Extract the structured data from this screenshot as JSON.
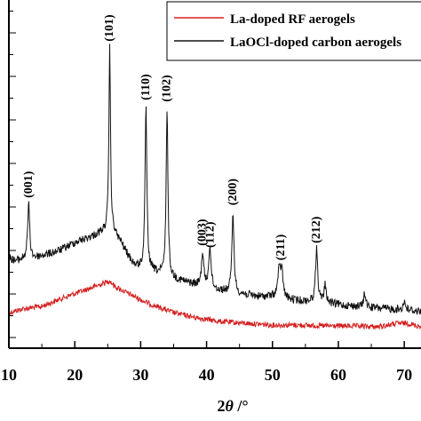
{
  "chart_data": {
    "type": "line",
    "title": "",
    "xlabel": "2θ /°",
    "xlabel_parts": {
      "two": "2",
      "theta": "θ",
      "unit": " /°"
    },
    "ylabel": "",
    "xlim": [
      10,
      72
    ],
    "x_ticks": [
      10,
      20,
      30,
      40,
      50,
      60,
      70
    ],
    "x_tick_labels": [
      "10",
      "20",
      "30",
      "40",
      "50",
      "60",
      "70"
    ],
    "y_tick_labels_shown": false,
    "legend_position": "top-right",
    "series": [
      {
        "name": "La-doped RF aerogels",
        "color": "#d42020",
        "points": [
          [
            10,
            352
          ],
          [
            12,
            348
          ],
          [
            15,
            345
          ],
          [
            18,
            336
          ],
          [
            21,
            328
          ],
          [
            24,
            320
          ],
          [
            25.3,
            316
          ],
          [
            26,
            322
          ],
          [
            28,
            330
          ],
          [
            31,
            341
          ],
          [
            35,
            352
          ],
          [
            38,
            357
          ],
          [
            42,
            362
          ],
          [
            46,
            364
          ],
          [
            50,
            366
          ],
          [
            54,
            366
          ],
          [
            58,
            367
          ],
          [
            62,
            367
          ],
          [
            66,
            368
          ],
          [
            69,
            364
          ],
          [
            70.5,
            364
          ],
          [
            72,
            367
          ]
        ],
        "noise": 6,
        "peaks": []
      },
      {
        "name": "LaOCl-doped carbon aerogels",
        "color": "#111111",
        "points": [
          [
            10,
            290
          ],
          [
            11,
            294
          ],
          [
            12,
            292
          ],
          [
            14,
            290
          ],
          [
            16,
            286
          ],
          [
            18,
            281
          ],
          [
            20,
            273
          ],
          [
            22,
            268
          ],
          [
            24,
            262
          ],
          [
            25.3,
            258
          ],
          [
            26,
            263
          ],
          [
            27,
            273
          ],
          [
            28,
            287
          ],
          [
            29,
            298
          ],
          [
            30,
            302
          ],
          [
            32,
            306
          ],
          [
            35,
            314
          ],
          [
            38,
            320
          ],
          [
            40,
            324
          ],
          [
            42,
            327
          ],
          [
            45,
            331
          ],
          [
            48,
            334
          ],
          [
            50,
            334
          ],
          [
            53,
            338
          ],
          [
            56,
            340
          ],
          [
            60,
            343
          ],
          [
            64,
            346
          ],
          [
            68,
            348
          ],
          [
            72,
            350
          ]
        ],
        "noise": 9,
        "peaks": [
          {
            "x": 13.0,
            "height": 62,
            "width": 0.18
          },
          {
            "x": 25.3,
            "height": 205,
            "width": 0.14
          },
          {
            "x": 30.8,
            "height": 184,
            "width": 0.16
          },
          {
            "x": 34.0,
            "height": 190,
            "width": 0.16
          },
          {
            "x": 39.4,
            "height": 38,
            "width": 0.2
          },
          {
            "x": 40.5,
            "height": 48,
            "width": 0.2
          },
          {
            "x": 44.0,
            "height": 92,
            "width": 0.18
          },
          {
            "x": 51.0,
            "height": 28,
            "width": 0.25
          },
          {
            "x": 51.4,
            "height": 30,
            "width": 0.22
          },
          {
            "x": 56.7,
            "height": 60,
            "width": 0.2
          },
          {
            "x": 58.0,
            "height": 20,
            "width": 0.2
          },
          {
            "x": 64.0,
            "height": 16,
            "width": 0.2
          },
          {
            "x": 70.0,
            "height": 10,
            "width": 0.2
          }
        ]
      }
    ],
    "annotations": [
      {
        "text": "(001)",
        "x": 13.0
      },
      {
        "text": "(101)",
        "x": 25.3
      },
      {
        "text": "(110)",
        "x": 30.8
      },
      {
        "text": "(102)",
        "x": 34.0
      },
      {
        "text": "(003)",
        "x": 39.4
      },
      {
        "text": "(112)",
        "x": 40.6
      },
      {
        "text": "(200)",
        "x": 44.0
      },
      {
        "text": "(211)",
        "x": 51.3
      },
      {
        "text": "(212)",
        "x": 56.7
      }
    ]
  }
}
